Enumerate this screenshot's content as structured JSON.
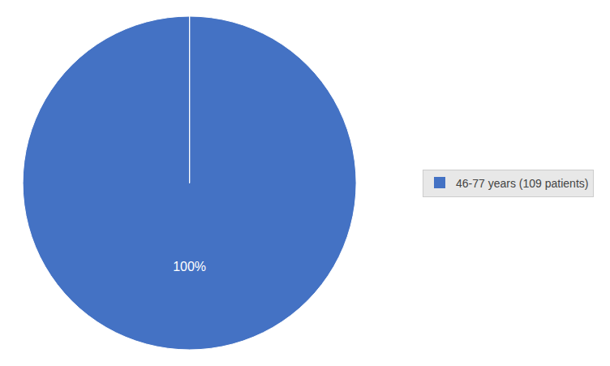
{
  "chart_data": {
    "type": "pie",
    "categories": [
      "46-77 years (109 patients)",
      null
    ],
    "values": [
      99.9999,
      0.0001
    ],
    "value_labels": [
      "100%",
      null
    ],
    "colors": [
      "#4472C4",
      "#4472C4"
    ],
    "data_labels": true,
    "legend": "right"
  }
}
